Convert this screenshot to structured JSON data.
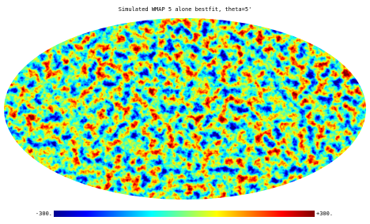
{
  "title": "Simulated WMAP 5 alone bestfit, theta=5'",
  "colorbar": {
    "min": {
      "value": -300,
      "label": "-300."
    },
    "max": {
      "value": 300,
      "label": "+300."
    },
    "colors": [
      "#00008f",
      "#0000ff",
      "#0080ff",
      "#00ffff",
      "#80ff80",
      "#ffff00",
      "#ff8000",
      "#ff0000",
      "#800000"
    ]
  }
}
